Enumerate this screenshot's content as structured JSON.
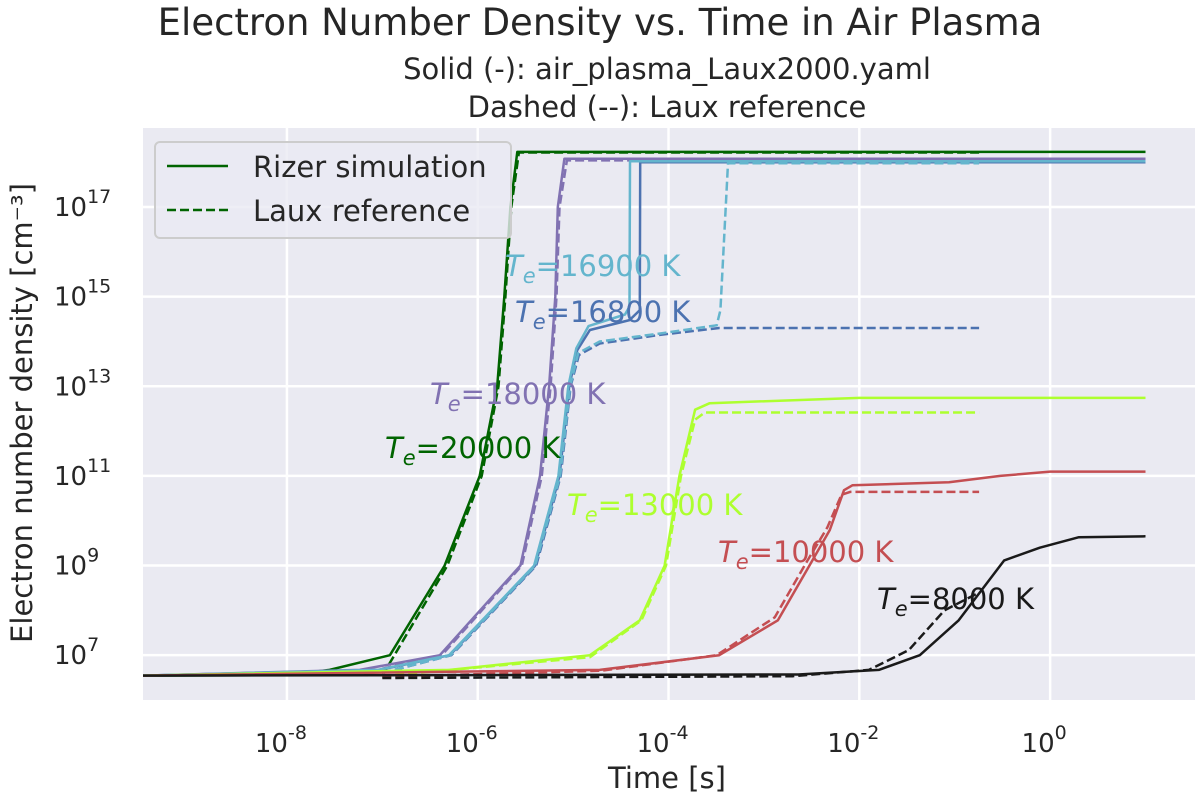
{
  "chart_data": {
    "type": "line",
    "title": "Electron Number Density vs. Time in Air Plasma",
    "subtitle": [
      "Solid (-): air_plasma_Laux2000.yaml",
      "Dashed (--): Laux reference"
    ],
    "xlabel": "Time [s]",
    "ylabel": "Electron number density [cm⁻³]",
    "xscale": "log",
    "yscale": "log",
    "xlim": [
      3.1e-10,
      33
    ],
    "ylim": [
      1000000.0,
      5.8e+18
    ],
    "grid": true,
    "background": "#eaeaf2",
    "xticks": [
      {
        "exp": "-8",
        "value": 1e-08
      },
      {
        "exp": "-6",
        "value": 1e-06
      },
      {
        "exp": "-4",
        "value": 0.0001
      },
      {
        "exp": "-2",
        "value": 0.01
      },
      {
        "exp": "0",
        "value": 1
      }
    ],
    "yticks": [
      {
        "exp": "7",
        "value": 10000000.0
      },
      {
        "exp": "9",
        "value": 1000000000.0
      },
      {
        "exp": "11",
        "value": 100000000000.0
      },
      {
        "exp": "13",
        "value": 10000000000000.0
      },
      {
        "exp": "15",
        "value": 1000000000000000.0
      },
      {
        "exp": "17",
        "value": 1e+17
      }
    ],
    "tick_base": "10",
    "legend": {
      "placement": "upper-left",
      "entries": [
        {
          "label": "Rizer simulation",
          "style": "solid",
          "color": "#006400"
        },
        {
          "label": "Laux reference",
          "style": "dashed",
          "color": "#006400"
        }
      ]
    },
    "series": [
      {
        "temperature": "20000 K",
        "color": "#006400",
        "solid": {
          "t": [
            3.1e-10,
            1e-08,
            2.8e-08,
            1.2e-07,
            4.5e-07,
            1.05e-06,
            1.6e-06,
            1.9e-06,
            2.2e-06,
            2.6e-06,
            10
          ],
          "n": [
            3500000.0,
            3600000.0,
            4700000.0,
            10000000.0,
            1000000000.0,
            100000000000.0,
            10000000000000.0,
            1000000000000000.0,
            1e+17,
            1.7e+18,
            1.7e+18
          ]
        },
        "dashed": {
          "t": [
            1e-07,
            1.3e-07,
            4.8e-07,
            1.1e-06,
            1.65e-06,
            1.95e-06,
            2.25e-06,
            2.7e-06,
            0.18
          ],
          "n": [
            3500000.0,
            9000000.0,
            1000000000.0,
            100000000000.0,
            10000000000000.0,
            1000000000000000.0,
            1e+17,
            1.65e+18,
            1.65e+18
          ]
        }
      },
      {
        "temperature": "18000 K",
        "color": "#8172b2",
        "solid": {
          "t": [
            3.1e-10,
            5.8e-08,
            4e-07,
            2.8e-06,
            4.5e-06,
            5.6e-06,
            6.5e-06,
            6.9e-06,
            8.1e-06,
            10
          ],
          "n": [
            3500000.0,
            4700000.0,
            10000000.0,
            1000000000.0,
            100000000000.0,
            10000000000000.0,
            1000000000000000.0,
            1e+17,
            1.2e+18,
            1.2e+18
          ]
        },
        "dashed": {
          "t": [
            1e-07,
            4.2e-07,
            2.9e-06,
            4.7e-06,
            5.8e-06,
            6.7e-06,
            7.2e-06,
            8.6e-06,
            0.18
          ],
          "n": [
            5000000.0,
            10000000.0,
            1000000000.0,
            100000000000.0,
            10000000000000.0,
            1000000000000000.0,
            1e+17,
            1.1e+18,
            1.1e+18
          ]
        }
      },
      {
        "temperature": "16800 K",
        "color": "#4c72b0",
        "solid": {
          "t": [
            3.1e-10,
            9.3e-08,
            5.1e-07,
            4e-06,
            7.2e-06,
            9.1e-06,
            1.1e-05,
            1.5e-05,
            3.9e-05,
            5e-05,
            5.05e-05,
            10
          ],
          "n": [
            3500000.0,
            4700000.0,
            10000000.0,
            1000000000.0,
            100000000000.0,
            10000000000000.0,
            63000000000000.0,
            180000000000000.0,
            300000000000000.0,
            500000000000000.0,
            1e+18,
            1e+18
          ]
        },
        "dashed": {
          "t": [
            1e-07,
            5.3e-07,
            4.1e-06,
            7.4e-06,
            9.4e-06,
            1.15e-05,
            1.9e-05,
            8.1e-05,
            0.00034,
            0.18
          ],
          "n": [
            4000000.0,
            10000000.0,
            1000000000.0,
            100000000000.0,
            10000000000000.0,
            50000000000000.0,
            90000000000000.0,
            140000000000000.0,
            200000000000000.0,
            200000000000000.0
          ]
        }
      },
      {
        "temperature": "16900 K",
        "color": "#64b5cd",
        "solid": {
          "t": [
            3.1e-10,
            9e-08,
            5e-07,
            3.9e-06,
            7e-06,
            8.9e-06,
            1.08e-05,
            1.45e-05,
            3.5e-05,
            3.9e-05,
            3.95e-05,
            10
          ],
          "n": [
            3500000.0,
            4700000.0,
            10000000.0,
            1000000000.0,
            100000000000.0,
            10000000000000.0,
            70000000000000.0,
            220000000000000.0,
            400000000000000.0,
            600000000000000.0,
            1.05e+18,
            1.05e+18
          ]
        },
        "dashed": {
          "t": [
            1e-07,
            5.2e-07,
            4e-06,
            7.3e-06,
            9.3e-06,
            1.13e-05,
            1.9e-05,
            8e-05,
            0.00032,
            0.00035,
            0.00042,
            0.18
          ],
          "n": [
            4000000.0,
            10000000.0,
            1000000000.0,
            100000000000.0,
            10000000000000.0,
            55000000000000.0,
            100000000000000.0,
            150000000000000.0,
            230000000000000.0,
            500000000000000.0,
            9.5e+17,
            9.5e+17
          ]
        }
      },
      {
        "temperature": "13000 K",
        "color": "#adff2f",
        "solid": {
          "t": [
            3.1e-10,
            5.1e-07,
            1.5e-05,
            5e-05,
            9.1e-05,
            0.00013,
            0.00019,
            0.00027,
            0.01,
            10
          ],
          "n": [
            3500000.0,
            4700000.0,
            10000000.0,
            60000000.0,
            1000000000.0,
            100000000000.0,
            3000000000000.0,
            4200000000000.0,
            5500000000000.0,
            5500000000000.0
          ]
        },
        "dashed": {
          "t": [
            1e-07,
            1.5e-05,
            5.2e-05,
            9.4e-05,
            0.000135,
            0.00019,
            0.00024,
            0.18
          ],
          "n": [
            3400000.0,
            9000000.0,
            60000000.0,
            1000000000.0,
            100000000000.0,
            1800000000000.0,
            2600000000000.0,
            2600000000000.0
          ]
        }
      },
      {
        "temperature": "10000 K",
        "color": "#c44e52",
        "solid": {
          "t": [
            3.1e-10,
            1.9e-05,
            0.00034,
            0.0014,
            0.003,
            0.0049,
            0.0069,
            0.0085,
            0.087,
            0.3,
            1,
            10
          ],
          "n": [
            3500000.0,
            4700000.0,
            10000000.0,
            60000000.0,
            1000000000.0,
            6200000000.0,
            48000000000.0,
            62000000000.0,
            72000000000.0,
            100000000000.0,
            125000000000.0,
            125000000000.0
          ]
        },
        "dashed": {
          "t": [
            1e-07,
            2e-05,
            0.00032,
            0.0013,
            0.0028,
            0.0046,
            0.0065,
            0.008,
            0.18
          ],
          "n": [
            3300000.0,
            4500000.0,
            10000000.0,
            70000000.0,
            1200000000.0,
            7000000000.0,
            38000000000.0,
            44000000000.0,
            44000000000.0
          ]
        }
      },
      {
        "temperature": "8000 K",
        "color": "#1a1a1a",
        "solid": {
          "t": [
            3.1e-10,
            0.0023,
            0.016,
            0.043,
            0.11,
            0.3,
            0.33,
            0.78,
            2.0,
            10
          ],
          "n": [
            3500000.0,
            3700000.0,
            4700000.0,
            10000000.0,
            60000000.0,
            1000000000.0,
            1300000000.0,
            2500000000.0,
            4300000000.0,
            4500000000.0
          ]
        },
        "dashed": {
          "t": [
            1e-07,
            0.002,
            0.0126,
            0.033,
            0.078,
            0.18
          ],
          "n": [
            3100000.0,
            3400000.0,
            4700000.0,
            13000000.0,
            100000000.0,
            250000000.0
          ]
        }
      }
    ],
    "annotations": [
      {
        "symbol": "T",
        "sub": "e",
        "text": "=20000 K",
        "color": "#006400"
      },
      {
        "symbol": "T",
        "sub": "e",
        "text": "=18000 K",
        "color": "#8172b2"
      },
      {
        "symbol": "T",
        "sub": "e",
        "text": "=16900 K",
        "color": "#64b5cd"
      },
      {
        "symbol": "T",
        "sub": "e",
        "text": "=16800 K",
        "color": "#4c72b0"
      },
      {
        "symbol": "T",
        "sub": "e",
        "text": "=13000 K",
        "color": "#adff2f"
      },
      {
        "symbol": "T",
        "sub": "e",
        "text": "=10000 K",
        "color": "#c44e52"
      },
      {
        "symbol": "T",
        "sub": "e",
        "text": "=8000 K",
        "color": "#1a1a1a"
      }
    ]
  }
}
